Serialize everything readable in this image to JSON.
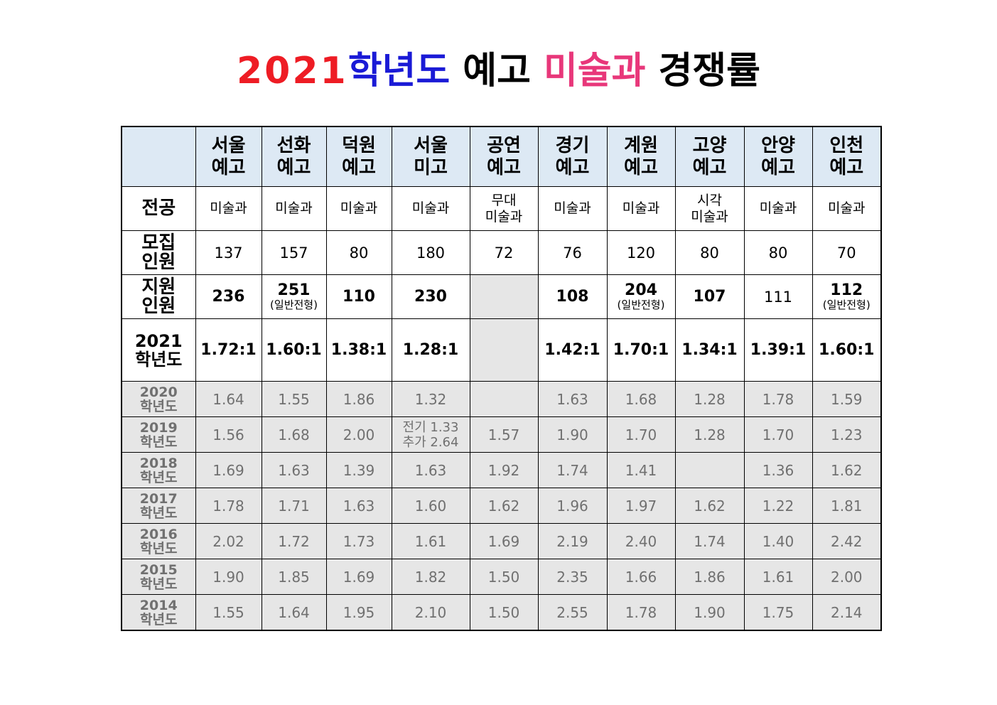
{
  "title": {
    "year": "2021",
    "grade": "학년도",
    "school": "예고",
    "major": "미술과",
    "rate": "경쟁률",
    "colors": {
      "year": "#ee1c24",
      "grade": "#1a1ad6",
      "major": "#e8377a"
    }
  },
  "schools": [
    {
      "line1": "서울",
      "line2": "예고"
    },
    {
      "line1": "선화",
      "line2": "예고"
    },
    {
      "line1": "덕원",
      "line2": "예고"
    },
    {
      "line1": "서울",
      "line2": "미고"
    },
    {
      "line1": "공연",
      "line2": "예고"
    },
    {
      "line1": "경기",
      "line2": "예고"
    },
    {
      "line1": "계원",
      "line2": "예고"
    },
    {
      "line1": "고양",
      "line2": "예고"
    },
    {
      "line1": "안양",
      "line2": "예고"
    },
    {
      "line1": "인천",
      "line2": "예고"
    }
  ],
  "rows": {
    "major": {
      "label": "전공",
      "values": [
        {
          "line1": "미술과",
          "line2": ""
        },
        {
          "line1": "미술과",
          "line2": ""
        },
        {
          "line1": "미술과",
          "line2": ""
        },
        {
          "line1": "미술과",
          "line2": ""
        },
        {
          "line1": "무대",
          "line2": "미술과"
        },
        {
          "line1": "미술과",
          "line2": ""
        },
        {
          "line1": "미술과",
          "line2": ""
        },
        {
          "line1": "시각",
          "line2": "미술과"
        },
        {
          "line1": "미술과",
          "line2": ""
        },
        {
          "line1": "미술과",
          "line2": ""
        }
      ]
    },
    "recruit": {
      "label1": "모집",
      "label2": "인원",
      "values": [
        "137",
        "157",
        "80",
        "180",
        "72",
        "76",
        "120",
        "80",
        "80",
        "70"
      ]
    },
    "apply": {
      "label1": "지원",
      "label2": "인원",
      "values": [
        {
          "value": "236",
          "note": ""
        },
        {
          "value": "251",
          "note": "(일반전형)"
        },
        {
          "value": "110",
          "note": ""
        },
        {
          "value": "230",
          "note": ""
        },
        {
          "value": "",
          "note": ""
        },
        {
          "value": "108",
          "note": ""
        },
        {
          "value": "204",
          "note": "(일반전형)"
        },
        {
          "value": "107",
          "note": ""
        },
        {
          "value": "111",
          "note": ""
        },
        {
          "value": "112",
          "note": "(일반전형)"
        }
      ]
    },
    "y2021": {
      "label1": "2021",
      "label2": "학년도",
      "values": [
        "1.72:1",
        "1.60:1",
        "1.38:1",
        "1.28:1",
        "",
        "1.42:1",
        "1.70:1",
        "1.34:1",
        "1.39:1",
        "1.60:1"
      ]
    },
    "past": [
      {
        "year": "2020",
        "suffix": "학년도",
        "values": [
          "1.64",
          "1.55",
          "1.86",
          "1.32",
          "",
          "1.63",
          "1.68",
          "1.28",
          "1.78",
          "1.59"
        ]
      },
      {
        "year": "2019",
        "suffix": "학년도",
        "values": [
          "1.56",
          "1.68",
          "2.00",
          "전기 1.33|추가 2.64",
          "1.57",
          "1.90",
          "1.70",
          "1.28",
          "1.70",
          "1.23"
        ]
      },
      {
        "year": "2018",
        "suffix": "학년도",
        "values": [
          "1.69",
          "1.63",
          "1.39",
          "1.63",
          "1.92",
          "1.74",
          "1.41",
          "",
          "1.36",
          "1.62"
        ]
      },
      {
        "year": "2017",
        "suffix": "학년도",
        "values": [
          "1.78",
          "1.71",
          "1.63",
          "1.60",
          "1.62",
          "1.96",
          "1.97",
          "1.62",
          "1.22",
          "1.81"
        ]
      },
      {
        "year": "2016",
        "suffix": "학년도",
        "values": [
          "2.02",
          "1.72",
          "1.73",
          "1.61",
          "1.69",
          "2.19",
          "2.40",
          "1.74",
          "1.40",
          "2.42"
        ]
      },
      {
        "year": "2015",
        "suffix": "학년도",
        "values": [
          "1.90",
          "1.85",
          "1.69",
          "1.82",
          "1.50",
          "2.35",
          "1.66",
          "1.86",
          "1.61",
          "2.00"
        ]
      },
      {
        "year": "2014",
        "suffix": "학년도",
        "values": [
          "1.55",
          "1.64",
          "1.95",
          "2.10",
          "1.50",
          "2.55",
          "1.78",
          "1.90",
          "1.75",
          "2.14"
        ]
      }
    ]
  }
}
